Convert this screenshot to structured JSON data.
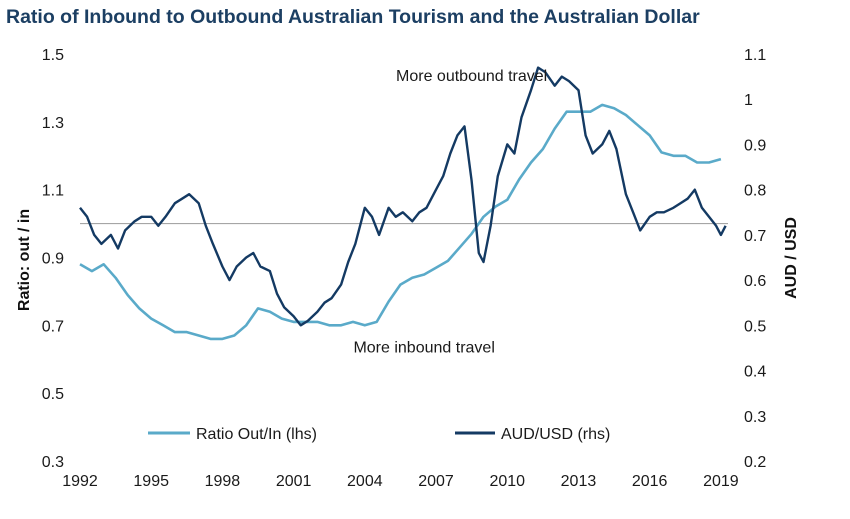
{
  "page": {
    "title": "Ratio of Inbound to Outbound Australian Tourism and the Australian Dollar"
  },
  "colors": {
    "ratio_series": "#5aaac9",
    "aud_series": "#143a63",
    "reference_line": "#a6a6a6",
    "title": "#1c3f63"
  },
  "chart_data": {
    "type": "line",
    "title": "Ratio of Inbound to Outbound Australian Tourism and the Australian Dollar",
    "ylabel_left": "Ratio: out / in",
    "ylabel_right": "AUD / USD",
    "ylim_left": [
      0.3,
      1.5
    ],
    "ylim_right": [
      0.2,
      1.1
    ],
    "left_ticks": [
      "0.3",
      "0.5",
      "0.7",
      "0.9",
      "1.1",
      "1.3",
      "1.5"
    ],
    "right_ticks": [
      "0.2",
      "0.3",
      "0.4",
      "0.5",
      "0.6",
      "0.7",
      "0.8",
      "0.9",
      "1",
      "1.1"
    ],
    "xlim": [
      1992,
      2019.3
    ],
    "x_ticks": [
      "1992",
      "1995",
      "1998",
      "2001",
      "2004",
      "2007",
      "2010",
      "2013",
      "2016",
      "2019"
    ],
    "reference_line_left": 1.0,
    "grid": false,
    "legend_position": "bottom-center",
    "annotations": [
      {
        "text": "More outbound travel",
        "x": 2008.5,
        "y_left": 1.42
      },
      {
        "text": "More inbound travel",
        "x": 2006.5,
        "y_left": 0.62
      }
    ],
    "series": [
      {
        "name": "Ratio Out/In (lhs)",
        "axis": "left",
        "x": [
          1992.0,
          1992.5,
          1993.0,
          1993.5,
          1994.0,
          1994.5,
          1995.0,
          1995.5,
          1996.0,
          1996.5,
          1997.0,
          1997.5,
          1998.0,
          1998.5,
          1999.0,
          1999.5,
          2000.0,
          2000.5,
          2001.0,
          2001.5,
          2002.0,
          2002.5,
          2003.0,
          2003.5,
          2004.0,
          2004.5,
          2005.0,
          2005.5,
          2006.0,
          2006.5,
          2007.0,
          2007.5,
          2008.0,
          2008.5,
          2009.0,
          2009.5,
          2010.0,
          2010.5,
          2011.0,
          2011.5,
          2012.0,
          2012.5,
          2013.0,
          2013.5,
          2014.0,
          2014.5,
          2015.0,
          2015.5,
          2016.0,
          2016.5,
          2017.0,
          2017.5,
          2018.0,
          2018.5,
          2019.0
        ],
        "values": [
          0.88,
          0.86,
          0.88,
          0.84,
          0.79,
          0.75,
          0.72,
          0.7,
          0.68,
          0.68,
          0.67,
          0.66,
          0.66,
          0.67,
          0.7,
          0.75,
          0.74,
          0.72,
          0.71,
          0.71,
          0.71,
          0.7,
          0.7,
          0.71,
          0.7,
          0.71,
          0.77,
          0.82,
          0.84,
          0.85,
          0.87,
          0.89,
          0.93,
          0.97,
          1.02,
          1.05,
          1.07,
          1.13,
          1.18,
          1.22,
          1.28,
          1.33,
          1.33,
          1.33,
          1.35,
          1.34,
          1.32,
          1.29,
          1.26,
          1.21,
          1.2,
          1.2,
          1.18,
          1.18,
          1.19
        ]
      },
      {
        "name": "AUD/USD (rhs)",
        "axis": "right",
        "x": [
          1992.0,
          1992.3,
          1992.6,
          1992.9,
          1993.3,
          1993.6,
          1993.9,
          1994.3,
          1994.6,
          1995.0,
          1995.3,
          1995.6,
          1996.0,
          1996.3,
          1996.6,
          1997.0,
          1997.3,
          1997.6,
          1998.0,
          1998.3,
          1998.6,
          1999.0,
          1999.3,
          1999.6,
          2000.0,
          2000.3,
          2000.6,
          2001.0,
          2001.3,
          2001.6,
          2002.0,
          2002.3,
          2002.6,
          2003.0,
          2003.3,
          2003.6,
          2004.0,
          2004.3,
          2004.6,
          2005.0,
          2005.3,
          2005.6,
          2006.0,
          2006.3,
          2006.6,
          2007.0,
          2007.3,
          2007.6,
          2007.9,
          2008.2,
          2008.5,
          2008.8,
          2009.0,
          2009.3,
          2009.6,
          2010.0,
          2010.3,
          2010.6,
          2011.0,
          2011.3,
          2011.6,
          2012.0,
          2012.3,
          2012.6,
          2013.0,
          2013.3,
          2013.6,
          2014.0,
          2014.3,
          2014.6,
          2015.0,
          2015.3,
          2015.6,
          2016.0,
          2016.3,
          2016.6,
          2017.0,
          2017.3,
          2017.6,
          2017.9,
          2018.2,
          2018.5,
          2018.8,
          2019.0,
          2019.2
        ],
        "values": [
          0.76,
          0.74,
          0.7,
          0.68,
          0.7,
          0.67,
          0.71,
          0.73,
          0.74,
          0.74,
          0.72,
          0.74,
          0.77,
          0.78,
          0.79,
          0.77,
          0.72,
          0.68,
          0.63,
          0.6,
          0.63,
          0.65,
          0.66,
          0.63,
          0.62,
          0.57,
          0.54,
          0.52,
          0.5,
          0.51,
          0.53,
          0.55,
          0.56,
          0.59,
          0.64,
          0.68,
          0.76,
          0.74,
          0.7,
          0.76,
          0.74,
          0.75,
          0.73,
          0.75,
          0.76,
          0.8,
          0.83,
          0.88,
          0.92,
          0.94,
          0.82,
          0.66,
          0.64,
          0.72,
          0.83,
          0.9,
          0.88,
          0.96,
          1.02,
          1.07,
          1.06,
          1.03,
          1.05,
          1.04,
          1.02,
          0.92,
          0.88,
          0.9,
          0.93,
          0.89,
          0.79,
          0.75,
          0.71,
          0.74,
          0.75,
          0.75,
          0.76,
          0.77,
          0.78,
          0.8,
          0.76,
          0.74,
          0.72,
          0.7,
          0.72
        ]
      }
    ]
  }
}
